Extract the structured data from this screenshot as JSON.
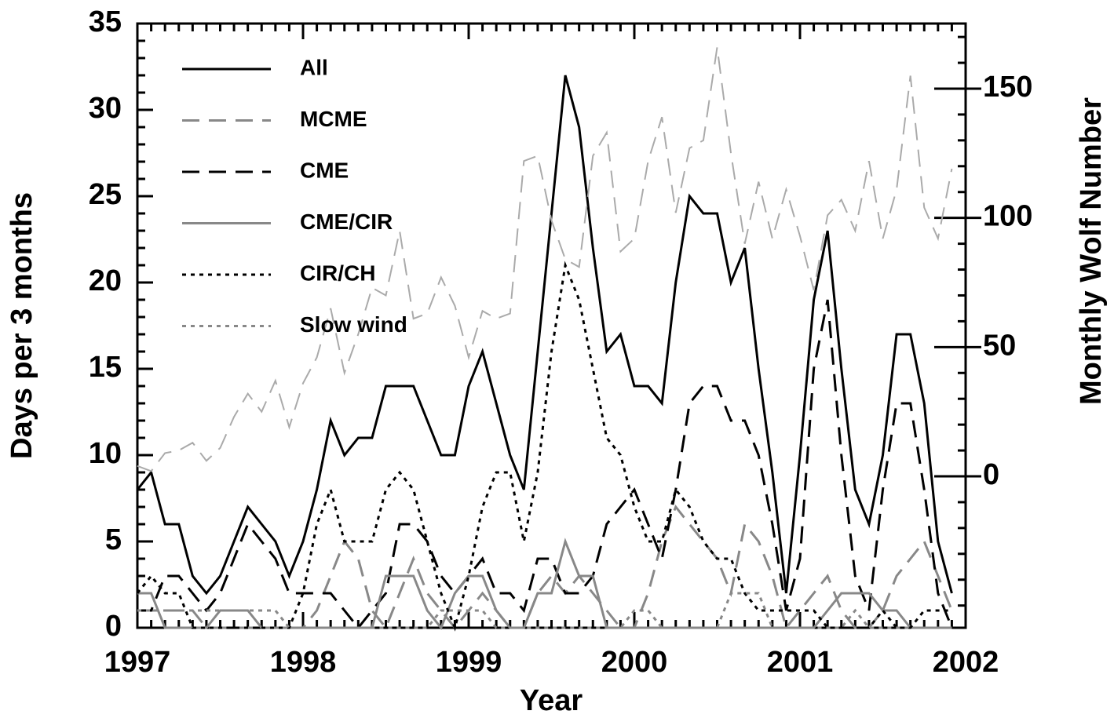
{
  "chart_data": {
    "type": "line",
    "xlabel": "Year",
    "ylabel": "Days per 3 months",
    "y2label": "Monthly Wolf Number",
    "xlim": [
      1997,
      2002
    ],
    "xticks": [
      1997,
      1998,
      1999,
      2000,
      2001,
      2002
    ],
    "ylim": [
      0,
      35
    ],
    "yticks": [
      0,
      5,
      10,
      15,
      20,
      25,
      30,
      35
    ],
    "y2lim": [
      -58.6,
      175.2
    ],
    "y2ticks": [
      0,
      50,
      100,
      150
    ],
    "legend": "upper left",
    "series": [
      {
        "name": "All",
        "color": "#000000",
        "style": "solid",
        "values": [
          8,
          9,
          6,
          6,
          3,
          2,
          3,
          5,
          7,
          6,
          5,
          3,
          5,
          8,
          12,
          10,
          11,
          11,
          14,
          14,
          14,
          12,
          10,
          10,
          14,
          16,
          13,
          10,
          8,
          16,
          24,
          32,
          29,
          22,
          16,
          17,
          14,
          14,
          13,
          20,
          25,
          24,
          24,
          20,
          22,
          15,
          9,
          2,
          10,
          19,
          23,
          15,
          8,
          6,
          10,
          17,
          17,
          13,
          5,
          2
        ]
      },
      {
        "name": "MCME",
        "color": "#888888",
        "style": "dashed",
        "values": [
          1,
          1,
          1,
          1,
          1,
          0,
          0,
          0,
          0,
          0,
          0,
          0,
          0,
          1,
          3,
          5,
          4,
          1,
          0,
          2,
          4,
          2,
          1,
          0,
          1,
          2,
          1,
          0,
          0,
          2,
          3,
          2,
          3,
          2,
          1,
          0,
          0,
          2,
          5,
          7,
          6,
          5,
          4,
          2,
          6,
          5,
          3,
          0,
          1,
          2,
          3,
          1,
          0,
          0,
          1,
          3,
          4,
          5,
          3,
          1
        ]
      },
      {
        "name": "CME",
        "color": "#000000",
        "style": "dashed",
        "values": [
          1,
          1,
          3,
          3,
          2,
          1,
          2,
          4,
          6,
          5,
          4,
          2,
          2,
          2,
          2,
          1,
          0,
          1,
          2,
          6,
          6,
          5,
          3,
          2,
          3,
          4,
          2,
          2,
          1,
          4,
          4,
          2,
          2,
          3,
          6,
          7,
          8,
          6,
          4,
          8,
          13,
          14,
          14,
          12,
          12,
          10,
          6,
          1,
          4,
          15,
          19,
          10,
          3,
          1,
          8,
          13,
          13,
          8,
          2,
          0
        ]
      },
      {
        "name": "CME/CIR",
        "color": "#888888",
        "style": "solid",
        "values": [
          2,
          2,
          0,
          0,
          0,
          0,
          1,
          1,
          1,
          0,
          0,
          0,
          0,
          0,
          0,
          0,
          0,
          0,
          3,
          3,
          3,
          1,
          0,
          2,
          3,
          3,
          1,
          0,
          0,
          2,
          2,
          5,
          3,
          3,
          0,
          0,
          0,
          0,
          0,
          0,
          0,
          0,
          0,
          0,
          0,
          0,
          0,
          0,
          0,
          0,
          1,
          2,
          2,
          2,
          1,
          1,
          0,
          0,
          0,
          0
        ]
      },
      {
        "name": "CIR/CH",
        "color": "#000000",
        "style": "dotted",
        "values": [
          2,
          3,
          2,
          2,
          0,
          0,
          0,
          0,
          0,
          0,
          0,
          0,
          2,
          6,
          8,
          5,
          5,
          5,
          8,
          9,
          8,
          5,
          2,
          0,
          3,
          7,
          9,
          9,
          5,
          9,
          16,
          21,
          19,
          15,
          11,
          10,
          7,
          5,
          5,
          8,
          7,
          5,
          4,
          4,
          2,
          1,
          1,
          1,
          1,
          1,
          0,
          0,
          0,
          0,
          1,
          0,
          0,
          1,
          1,
          1
        ]
      },
      {
        "name": "Slow wind",
        "color": "#888888",
        "style": "dotted",
        "values": [
          1,
          1,
          1,
          1,
          1,
          1,
          1,
          1,
          1,
          1,
          1,
          0,
          0,
          0,
          0,
          0,
          0,
          0,
          0,
          0,
          0,
          0,
          1,
          1,
          1,
          1,
          0,
          0,
          0,
          0,
          0,
          0,
          0,
          0,
          0,
          0,
          1,
          1,
          0,
          0,
          0,
          0,
          0,
          2,
          2,
          2,
          0,
          0,
          0,
          0,
          0,
          0,
          1,
          0,
          0,
          0,
          0,
          0,
          0,
          0
        ]
      },
      {
        "color": "#aaaaaa",
        "style": "dashed",
        "axis": "y2",
        "values": [
          4,
          2,
          9,
          10,
          13,
          6,
          11,
          23,
          32,
          25,
          37,
          19,
          36,
          46,
          65,
          40,
          55,
          73,
          70,
          95,
          61,
          63,
          77,
          66,
          46,
          64,
          61,
          63,
          122,
          124,
          99,
          84,
          81,
          124,
          133,
          87,
          92,
          122,
          139,
          102,
          127,
          130,
          166,
          125,
          90,
          114,
          92,
          111,
          93,
          72,
          101,
          107,
          95,
          122,
          92,
          111,
          155,
          104,
          92,
          119
        ]
      }
    ],
    "x": [
      1997,
      1997.0833,
      1997.1667,
      1997.25,
      1997.3333,
      1997.4167,
      1997.5,
      1997.5833,
      1997.6667,
      1997.75,
      1997.8333,
      1997.9167,
      1998,
      1998.0833,
      1998.1667,
      1998.25,
      1998.3333,
      1998.4167,
      1998.5,
      1998.5833,
      1998.6667,
      1998.75,
      1998.8333,
      1998.9167,
      1999,
      1999.0833,
      1999.1667,
      1999.25,
      1999.3333,
      1999.4167,
      1999.5,
      1999.5833,
      1999.6667,
      1999.75,
      1999.8333,
      1999.9167,
      2000,
      2000.0833,
      2000.1667,
      2000.25,
      2000.3333,
      2000.4167,
      2000.5,
      2000.5833,
      2000.6667,
      2000.75,
      2000.8333,
      2000.9167,
      2001,
      2001.0833,
      2001.1667,
      2001.25,
      2001.3333,
      2001.4167,
      2001.5,
      2001.5833,
      2001.6667,
      2001.75,
      2001.8333,
      2001.9167
    ]
  }
}
